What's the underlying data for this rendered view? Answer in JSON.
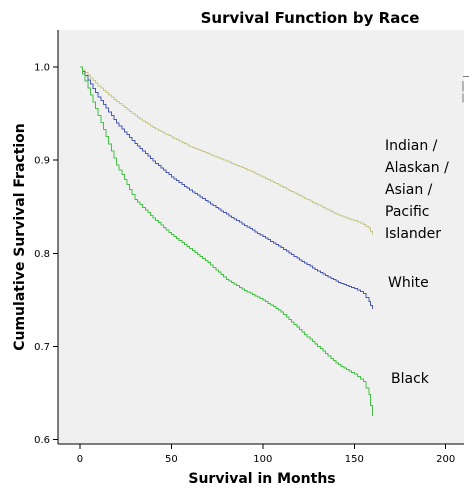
{
  "chart_data": {
    "type": "line",
    "title": "Survival Function by Race",
    "xlabel": "Survival in Months",
    "ylabel": "Cumulative Survival Fraction",
    "xlim": [
      -12,
      210
    ],
    "ylim": [
      0.595,
      1.04
    ],
    "x_ticks": [
      "0",
      "50",
      "100",
      "150",
      "200"
    ],
    "y_ticks": [
      "0.6",
      "0.7",
      "0.8",
      "0.9",
      "1.0"
    ],
    "grid": false,
    "background_color": "#f0f0f0",
    "series": [
      {
        "name_lines": [
          "Indian /",
          "Alaskan /",
          "Asian /",
          "Pacific",
          "Islander"
        ],
        "color": "#c8c88c",
        "x": [
          0,
          10,
          20,
          30,
          40,
          50,
          60,
          70,
          80,
          90,
          100,
          110,
          120,
          130,
          140,
          150,
          155,
          158,
          160
        ],
        "y": [
          1.0,
          0.98,
          0.963,
          0.948,
          0.935,
          0.925,
          0.915,
          0.907,
          0.899,
          0.891,
          0.882,
          0.872,
          0.862,
          0.852,
          0.842,
          0.835,
          0.831,
          0.827,
          0.82
        ]
      },
      {
        "name_lines": [
          "White"
        ],
        "color": "#4a5ab4",
        "x": [
          0,
          10,
          20,
          30,
          40,
          50,
          60,
          70,
          80,
          90,
          100,
          110,
          120,
          130,
          140,
          150,
          155,
          158,
          160
        ],
        "y": [
          1.0,
          0.968,
          0.94,
          0.918,
          0.899,
          0.882,
          0.868,
          0.855,
          0.842,
          0.83,
          0.818,
          0.806,
          0.793,
          0.781,
          0.77,
          0.762,
          0.757,
          0.748,
          0.74
        ]
      },
      {
        "name_lines": [
          "Black"
        ],
        "color": "#46c046",
        "x": [
          0,
          10,
          20,
          30,
          40,
          50,
          60,
          70,
          80,
          90,
          100,
          110,
          120,
          130,
          140,
          150,
          155,
          158,
          160
        ],
        "y": [
          1.0,
          0.948,
          0.895,
          0.858,
          0.838,
          0.82,
          0.805,
          0.79,
          0.772,
          0.76,
          0.75,
          0.737,
          0.718,
          0.7,
          0.682,
          0.67,
          0.662,
          0.648,
          0.625
        ]
      }
    ],
    "extra_marks": {
      "note": "small gray ticks at the right edge of the plot area near y≈0.97–0.99 (partially visible)",
      "color": "#7a7a7a"
    }
  }
}
